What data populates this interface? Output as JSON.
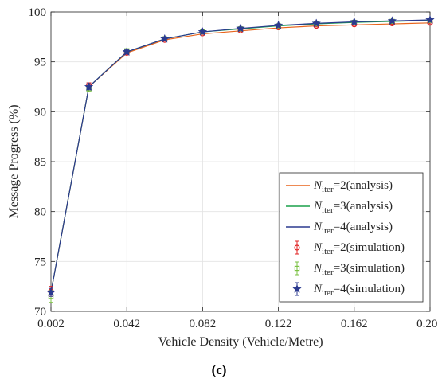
{
  "chart_data": {
    "type": "line",
    "xlabel": "Vehicle Density (Vehicle/Metre)",
    "ylabel": "Message Progress (%)",
    "caption": "(c)",
    "xlim": [
      0.002,
      0.202
    ],
    "ylim": [
      70,
      100
    ],
    "xticks": [
      0.002,
      0.042,
      0.082,
      0.122,
      0.162,
      0.202
    ],
    "xtick_labels": [
      "0.002",
      "0.042",
      "0.082",
      "0.122",
      "0.162",
      "0.202"
    ],
    "yticks": [
      70,
      75,
      80,
      85,
      90,
      95,
      100
    ],
    "ytick_labels": [
      "70",
      "75",
      "80",
      "85",
      "90",
      "95",
      "100"
    ],
    "grid": true,
    "legend_position": "bottom-right",
    "x": [
      0.002,
      0.022,
      0.042,
      0.062,
      0.082,
      0.102,
      0.122,
      0.142,
      0.162,
      0.182,
      0.202
    ],
    "series": [
      {
        "name": "N_iter=2(analysis)",
        "legend_main": "N",
        "legend_sub": "iter",
        "legend_rest": "=2(analysis)",
        "kind": "line",
        "color": "#e8641b",
        "values": [
          71.9,
          92.5,
          95.9,
          97.2,
          97.8,
          98.1,
          98.4,
          98.6,
          98.7,
          98.8,
          98.9
        ]
      },
      {
        "name": "N_iter=3(analysis)",
        "legend_main": "N",
        "legend_sub": "iter",
        "legend_rest": "=3(analysis)",
        "kind": "line",
        "color": "#1aa04a",
        "values": [
          71.9,
          92.5,
          96.0,
          97.3,
          98.0,
          98.3,
          98.6,
          98.8,
          98.95,
          99.05,
          99.15
        ]
      },
      {
        "name": "N_iter=4(analysis)",
        "legend_main": "N",
        "legend_sub": "iter",
        "legend_rest": "=4(analysis)",
        "kind": "line",
        "color": "#2b3a8f",
        "values": [
          71.9,
          92.5,
          96.0,
          97.3,
          98.0,
          98.35,
          98.65,
          98.85,
          99.0,
          99.1,
          99.2
        ]
      },
      {
        "name": "N_iter=2(simulation)",
        "legend_main": "N",
        "legend_sub": "iter",
        "legend_rest": "=2(simulation)",
        "kind": "errorbar",
        "marker": "circle",
        "color": "#e02020",
        "values": [
          72.0,
          92.6,
          95.9,
          97.2,
          97.85,
          98.15,
          98.45,
          98.6,
          98.75,
          98.85,
          98.9
        ],
        "errors": [
          0.5,
          0.3,
          0.2,
          0.1,
          0.1,
          0.1,
          0.1,
          0.1,
          0.1,
          0.1,
          0.1
        ]
      },
      {
        "name": "N_iter=3(simulation)",
        "legend_main": "N",
        "legend_sub": "iter",
        "legend_rest": "=3(simulation)",
        "kind": "errorbar",
        "marker": "square",
        "color": "#7ac142",
        "values": [
          71.5,
          92.3,
          96.1,
          97.3,
          98.0,
          98.3,
          98.6,
          98.8,
          98.95,
          99.05,
          99.15
        ],
        "errors": [
          0.6,
          0.3,
          0.2,
          0.1,
          0.1,
          0.1,
          0.1,
          0.1,
          0.1,
          0.1,
          0.1
        ]
      },
      {
        "name": "N_iter=4(simulation)",
        "legend_main": "N",
        "legend_sub": "iter",
        "legend_rest": "=4(simulation)",
        "kind": "errorbar",
        "marker": "star",
        "color": "#2b3a8f",
        "values": [
          71.9,
          92.5,
          96.0,
          97.3,
          98.0,
          98.35,
          98.65,
          98.85,
          99.0,
          99.1,
          99.2
        ],
        "errors": [
          0.4,
          0.3,
          0.2,
          0.1,
          0.1,
          0.1,
          0.1,
          0.1,
          0.1,
          0.1,
          0.1
        ]
      }
    ]
  }
}
